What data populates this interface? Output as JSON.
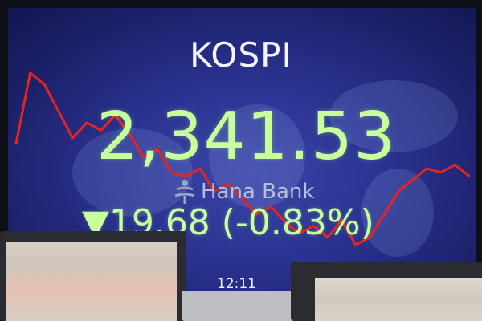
{
  "screen": {
    "title": "KOSPI",
    "index_value": "2,341.53",
    "change": "▼19.68 (-0.83%)",
    "sponsor": "Hana Bank",
    "time": "12:11",
    "logo_icon": "hana-bank-logo-icon",
    "colors": {
      "board_bg": "#2a3290",
      "value_green": "#c8ff9a",
      "line_red": "#e8231d",
      "title_white": "#f5f6ff"
    }
  },
  "chart_data": {
    "type": "line",
    "series": [
      {
        "values": [
          0.55,
          0.92,
          0.86,
          0.72,
          0.58,
          0.66,
          0.62,
          0.7,
          0.6,
          0.48,
          0.52,
          0.4,
          0.38,
          0.42,
          0.3,
          0.34,
          0.26,
          0.18,
          0.22,
          0.14,
          0.08,
          0.12,
          0.06,
          0.15,
          0.02,
          0.06,
          0.18,
          0.3,
          0.36,
          0.42,
          0.4,
          0.44,
          0.38
        ]
      }
    ]
  }
}
